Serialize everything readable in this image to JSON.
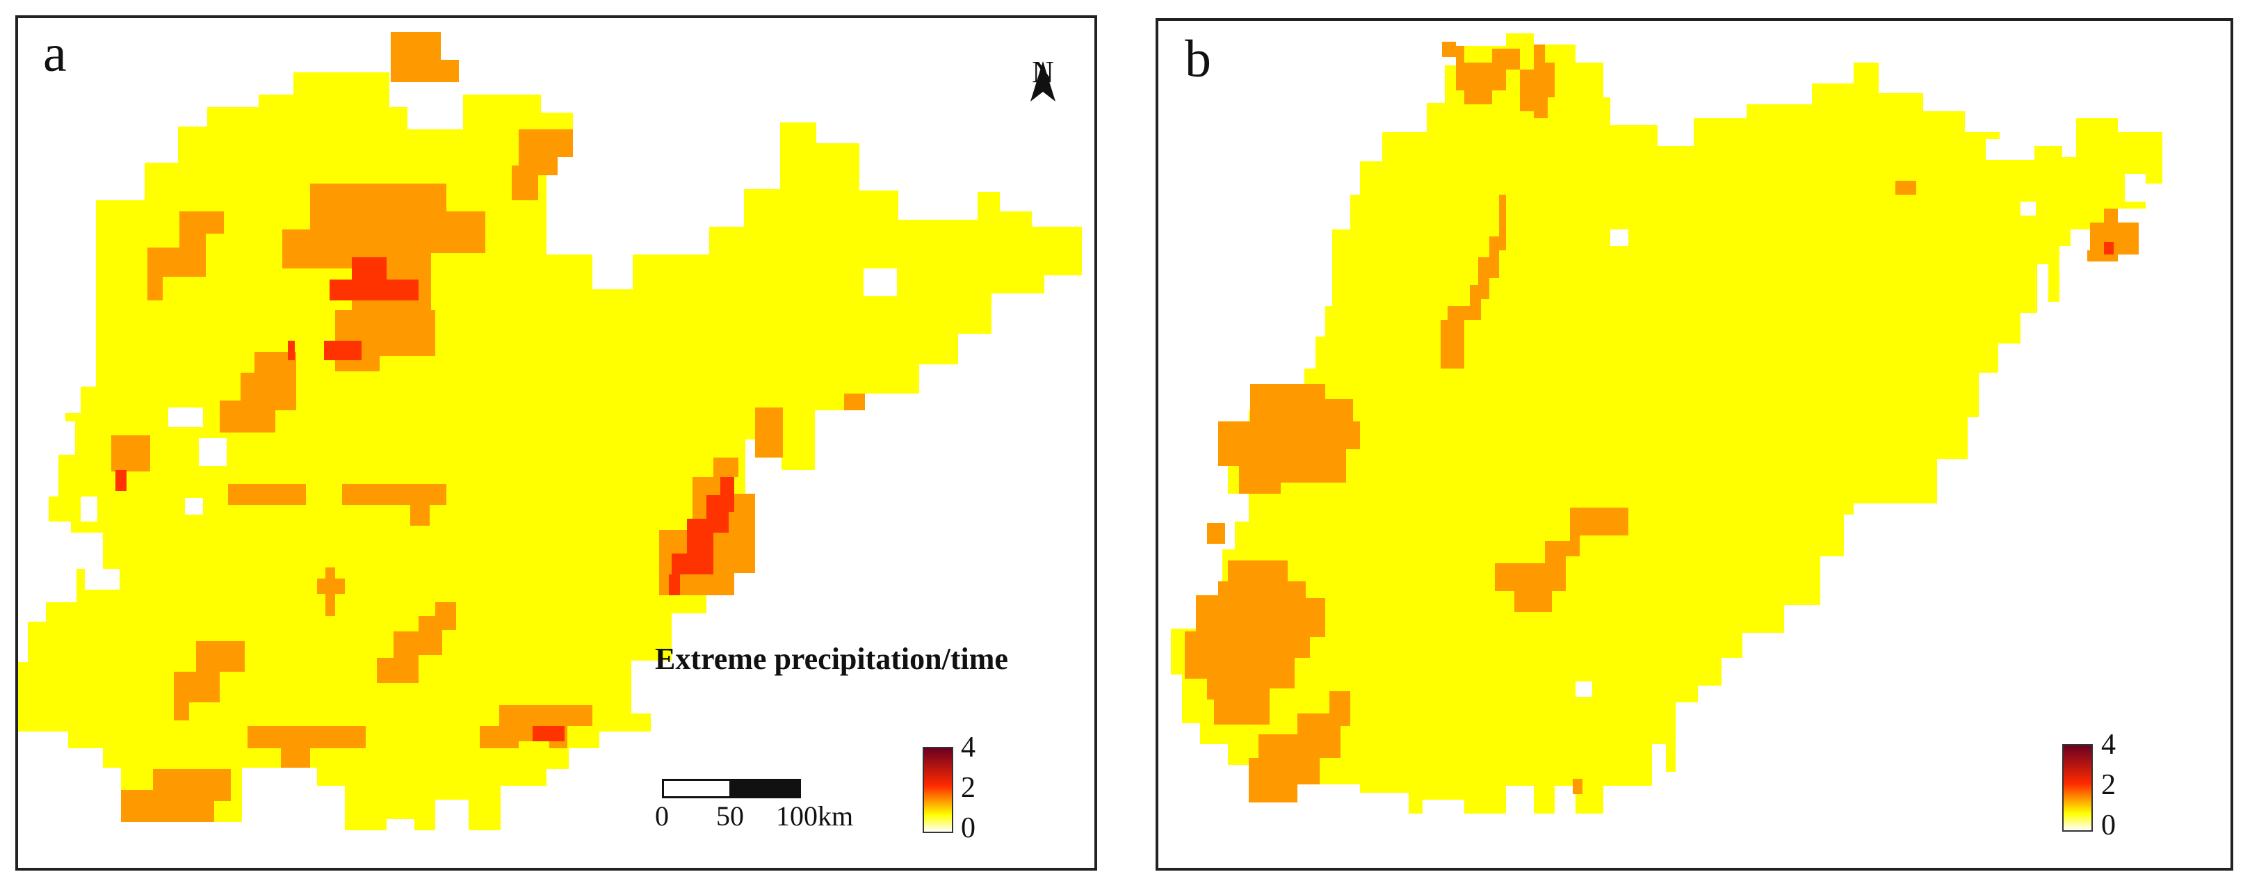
{
  "panels": [
    {
      "label": "a",
      "north_label": "N",
      "legend_title": "Extreme precipitation/time",
      "legend_ticks": [
        "4",
        "2",
        "0"
      ],
      "scale_ticks": [
        "0",
        "50",
        "100"
      ],
      "scale_unit": "km"
    },
    {
      "label": "b",
      "legend_ticks": [
        "4",
        "2",
        "0"
      ]
    }
  ],
  "colors": {
    "class_0": "#ffff00",
    "class_1": "#ff9900",
    "class_2": "#ff3300",
    "ramp_high": "#6b0022",
    "ramp_mid": "#ff2a00",
    "ramp_low": "#ffff00",
    "ramp_base": "#ffffff"
  },
  "legend_range": [
    0,
    4
  ]
}
